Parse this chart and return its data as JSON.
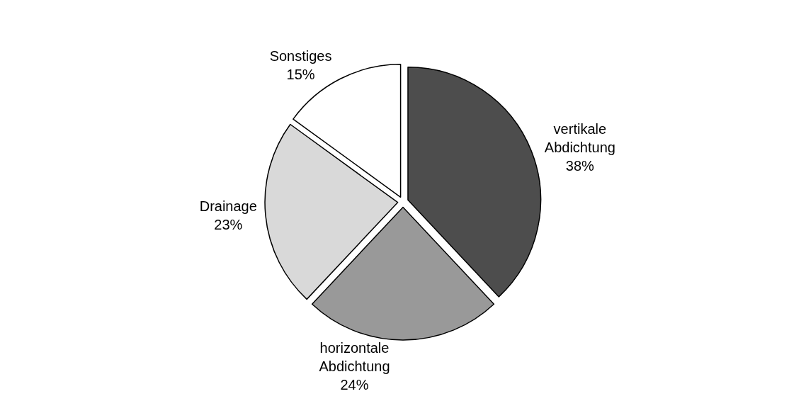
{
  "chart_data": {
    "type": "pie",
    "categories": [
      "vertikale Abdichtung",
      "horizontale Abdichtung",
      "Drainage",
      "Sonstiges"
    ],
    "values": [
      38,
      24,
      23,
      15
    ],
    "value_labels": [
      "38%",
      "24%",
      "23%",
      "15%"
    ],
    "colors": [
      "#4d4d4d",
      "#999999",
      "#d9d9d9",
      "#ffffff"
    ],
    "legend": false
  }
}
